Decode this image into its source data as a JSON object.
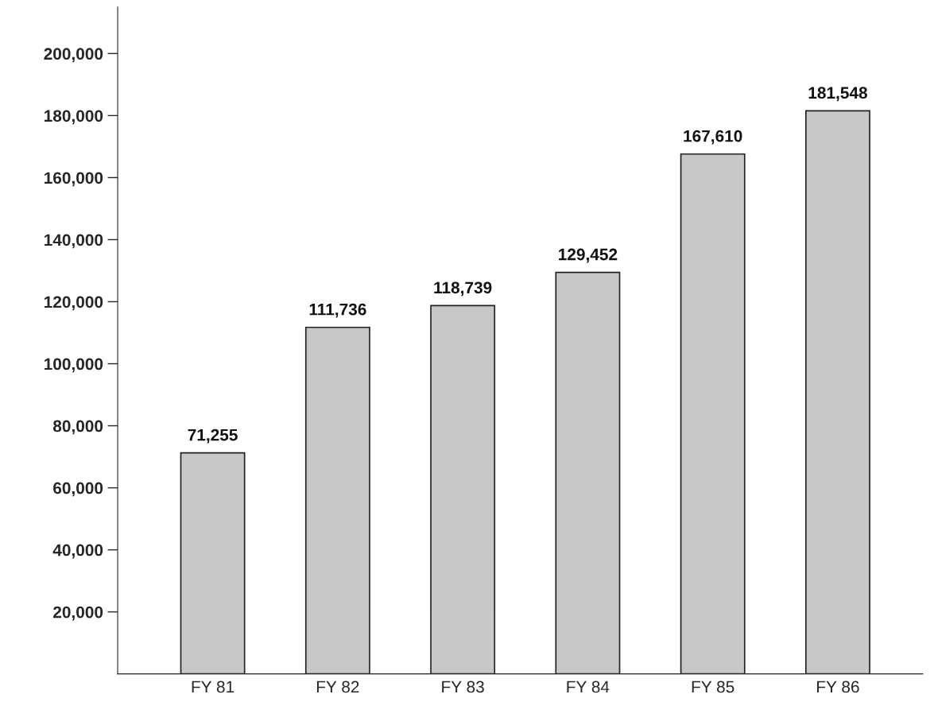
{
  "chart_data": {
    "type": "bar",
    "categories": [
      "FY 81",
      "FY 82",
      "FY 83",
      "FY 84",
      "FY 85",
      "FY 86"
    ],
    "values": [
      71255,
      111736,
      118739,
      129452,
      167610,
      181548
    ],
    "value_labels": [
      "71,255",
      "111,736",
      "118,739",
      "129,452",
      "167,610",
      "181,548"
    ],
    "color": "#c8c8c8",
    "ylim": [
      0,
      215000
    ],
    "yticks": [
      {
        "value": 20000,
        "label": "20,000"
      },
      {
        "value": 40000,
        "label": "40,000"
      },
      {
        "value": 60000,
        "label": "60,000"
      },
      {
        "value": 80000,
        "label": "80,000"
      },
      {
        "value": 100000,
        "label": "100,000"
      },
      {
        "value": 120000,
        "label": "120,000"
      },
      {
        "value": 140000,
        "label": "140,000"
      },
      {
        "value": 160000,
        "label": "160,000"
      },
      {
        "value": 180000,
        "label": "180,000"
      },
      {
        "value": 200000,
        "label": "200,000"
      }
    ],
    "grid": false
  }
}
